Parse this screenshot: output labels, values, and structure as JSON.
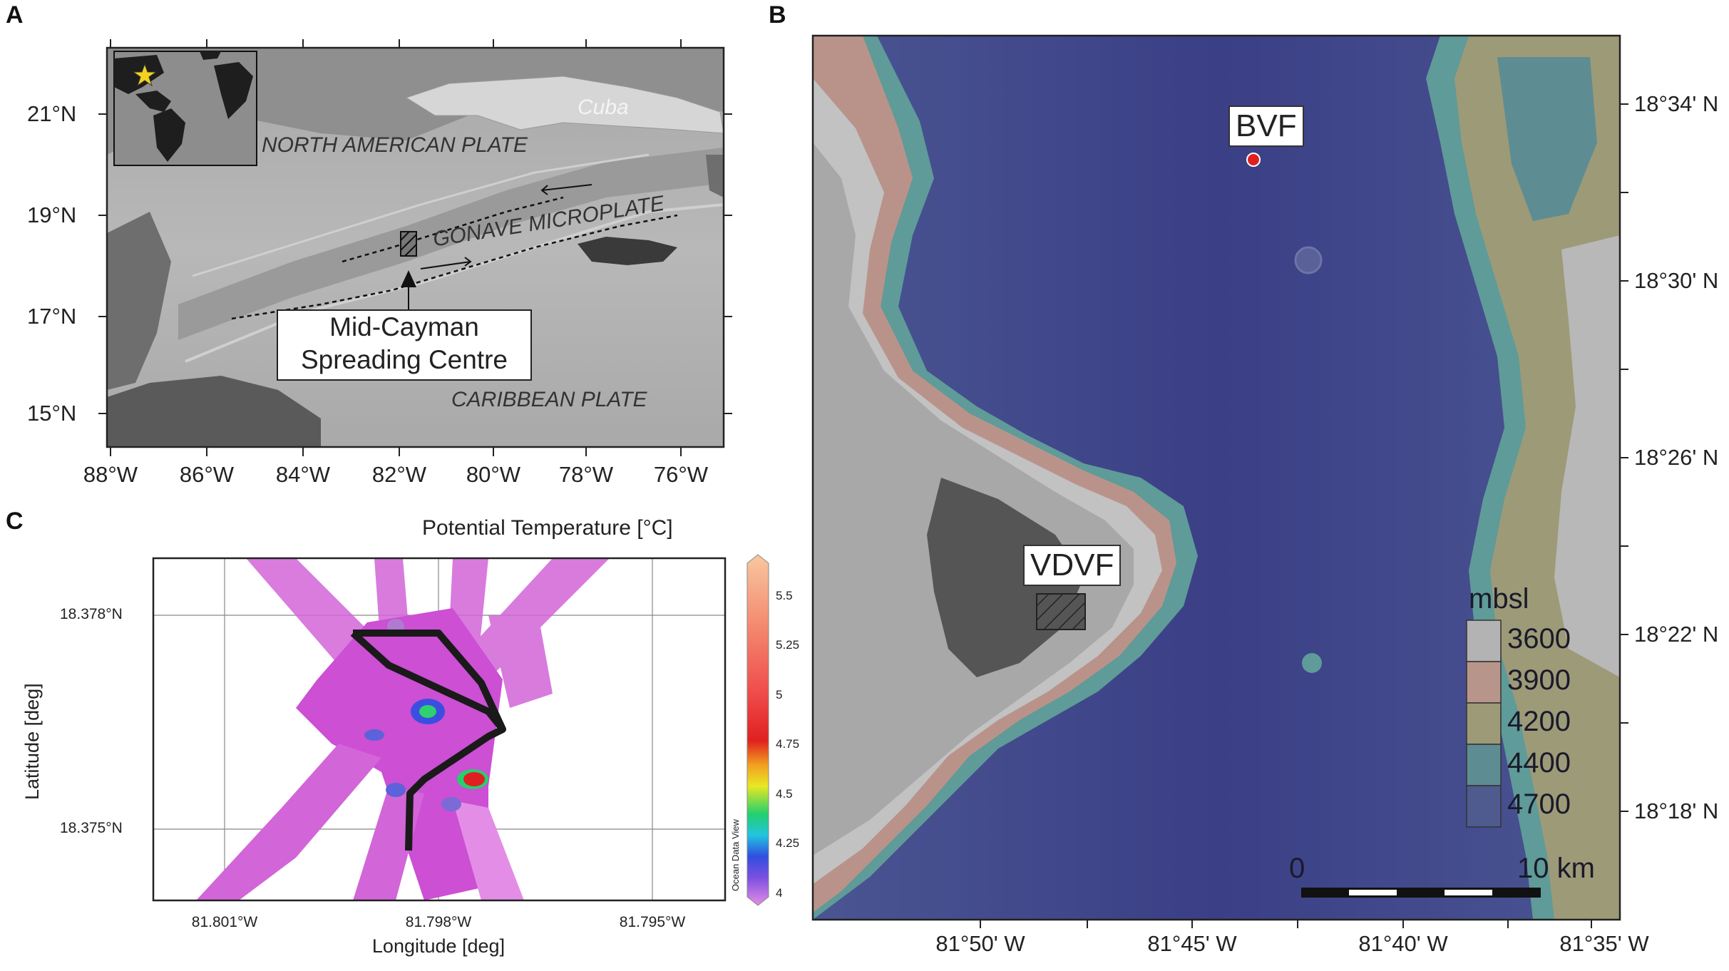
{
  "panels": {
    "a": {
      "letter": "A",
      "lat_ticks": [
        "21°N",
        "19°N",
        "17°N",
        "15°N"
      ],
      "lon_ticks": [
        "88°W",
        "86°W",
        "84°W",
        "82°W",
        "80°W",
        "78°W",
        "76°W"
      ],
      "labels": {
        "cuba": "Cuba",
        "north_american_plate": "NORTH AMERICAN PLATE",
        "gonave_microplate": "GONAVE MICROPLATE",
        "caribbean_plate": "CARIBBEAN PLATE"
      },
      "callout": {
        "line1": "Mid-Cayman",
        "line2": "Spreading Centre"
      },
      "star_color": "#f2d21c"
    },
    "b": {
      "letter": "B",
      "lat_ticks": [
        "18°34' N",
        "18°30' N",
        "18°26' N",
        "18°22' N",
        "18°18' N"
      ],
      "lon_ticks": [
        "81°50' W",
        "81°45' W",
        "81°40' W",
        "81°35' W"
      ],
      "sites": {
        "bvf": "BVF",
        "vdvf": "VDVF"
      },
      "site_marker_color": "#e02020",
      "legend": {
        "title": "mbsl",
        "levels": [
          "3600",
          "3900",
          "4200",
          "4400",
          "4700"
        ],
        "colors": [
          "#b3b3b3",
          "#b8958a",
          "#9d9a78",
          "#5d8d92",
          "#4f5a8f"
        ]
      },
      "scalebar": {
        "start": "0",
        "end": "10 km"
      }
    },
    "c": {
      "letter": "C",
      "colorbar_title": "Potential Temperature [°C]",
      "colorbar_ticks": [
        "5.5",
        "5.25",
        "5",
        "4.75",
        "4.5",
        "4.25",
        "4"
      ],
      "colorbar_side_label": "Ocean Data View",
      "y_ticks": [
        "18.378°N",
        "18.375°N"
      ],
      "x_ticks": [
        "81.801°W",
        "81.798°W",
        "81.795°W"
      ],
      "ylabel": "Latitude [deg]",
      "xlabel": "Longitude [deg]"
    }
  }
}
